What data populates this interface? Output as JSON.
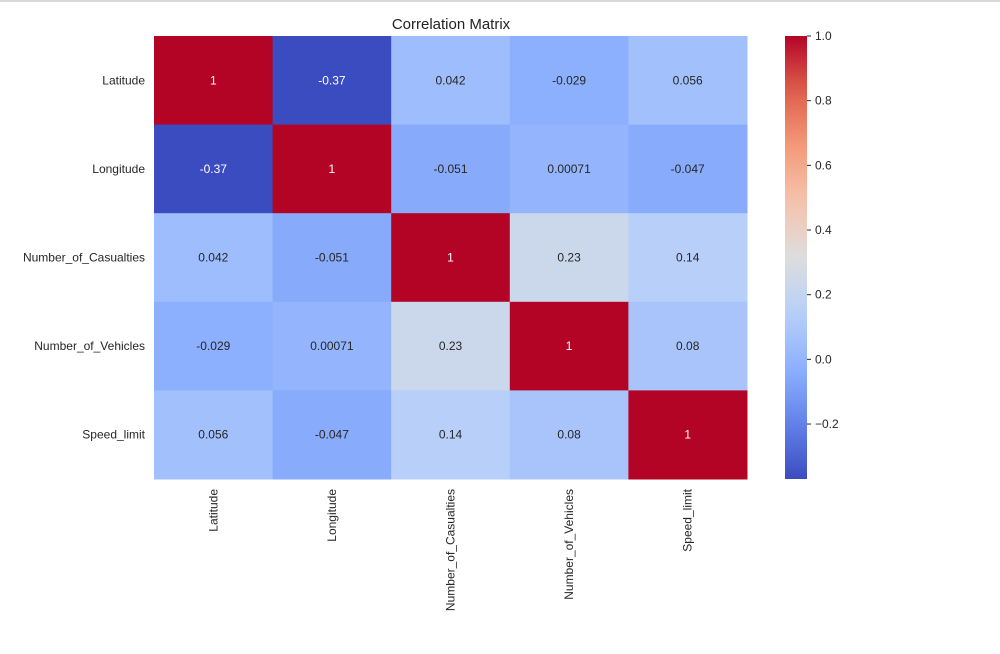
{
  "chart_data": {
    "type": "heatmap",
    "title": "Correlation Matrix",
    "xlabel": "",
    "ylabel": "",
    "colormap": "coolwarm",
    "x_labels": [
      "Latitude",
      "Longitude",
      "Number_of_Casualties",
      "Number_of_Vehicles",
      "Speed_limit"
    ],
    "y_labels": [
      "Latitude",
      "Longitude",
      "Number_of_Casualties",
      "Number_of_Vehicles",
      "Speed_limit"
    ],
    "values": [
      [
        1,
        -0.37,
        0.042,
        -0.029,
        0.056
      ],
      [
        -0.37,
        1,
        -0.051,
        0.00071,
        -0.047
      ],
      [
        0.042,
        -0.051,
        1,
        0.23,
        0.14
      ],
      [
        -0.029,
        0.00071,
        0.23,
        1,
        0.08
      ],
      [
        0.056,
        -0.047,
        0.14,
        0.08,
        1
      ]
    ],
    "annotations": [
      [
        "1",
        "-0.37",
        "0.042",
        "-0.029",
        "0.056"
      ],
      [
        "-0.37",
        "1",
        "-0.051",
        "0.00071",
        "-0.047"
      ],
      [
        "0.042",
        "-0.051",
        "1",
        "0.23",
        "0.14"
      ],
      [
        "-0.029",
        "0.00071",
        "0.23",
        "1",
        "0.08"
      ],
      [
        "0.056",
        "-0.047",
        "0.14",
        "0.08",
        "1"
      ]
    ],
    "colorbar": {
      "range": [
        -0.37,
        1.0
      ],
      "ticks": [
        1.0,
        0.8,
        0.6,
        0.4,
        0.2,
        0.0,
        -0.2
      ],
      "tick_labels": [
        "1.0",
        "0.8",
        "0.6",
        "0.4",
        "0.2",
        "0.0",
        "−0.2"
      ],
      "position": "right"
    }
  }
}
